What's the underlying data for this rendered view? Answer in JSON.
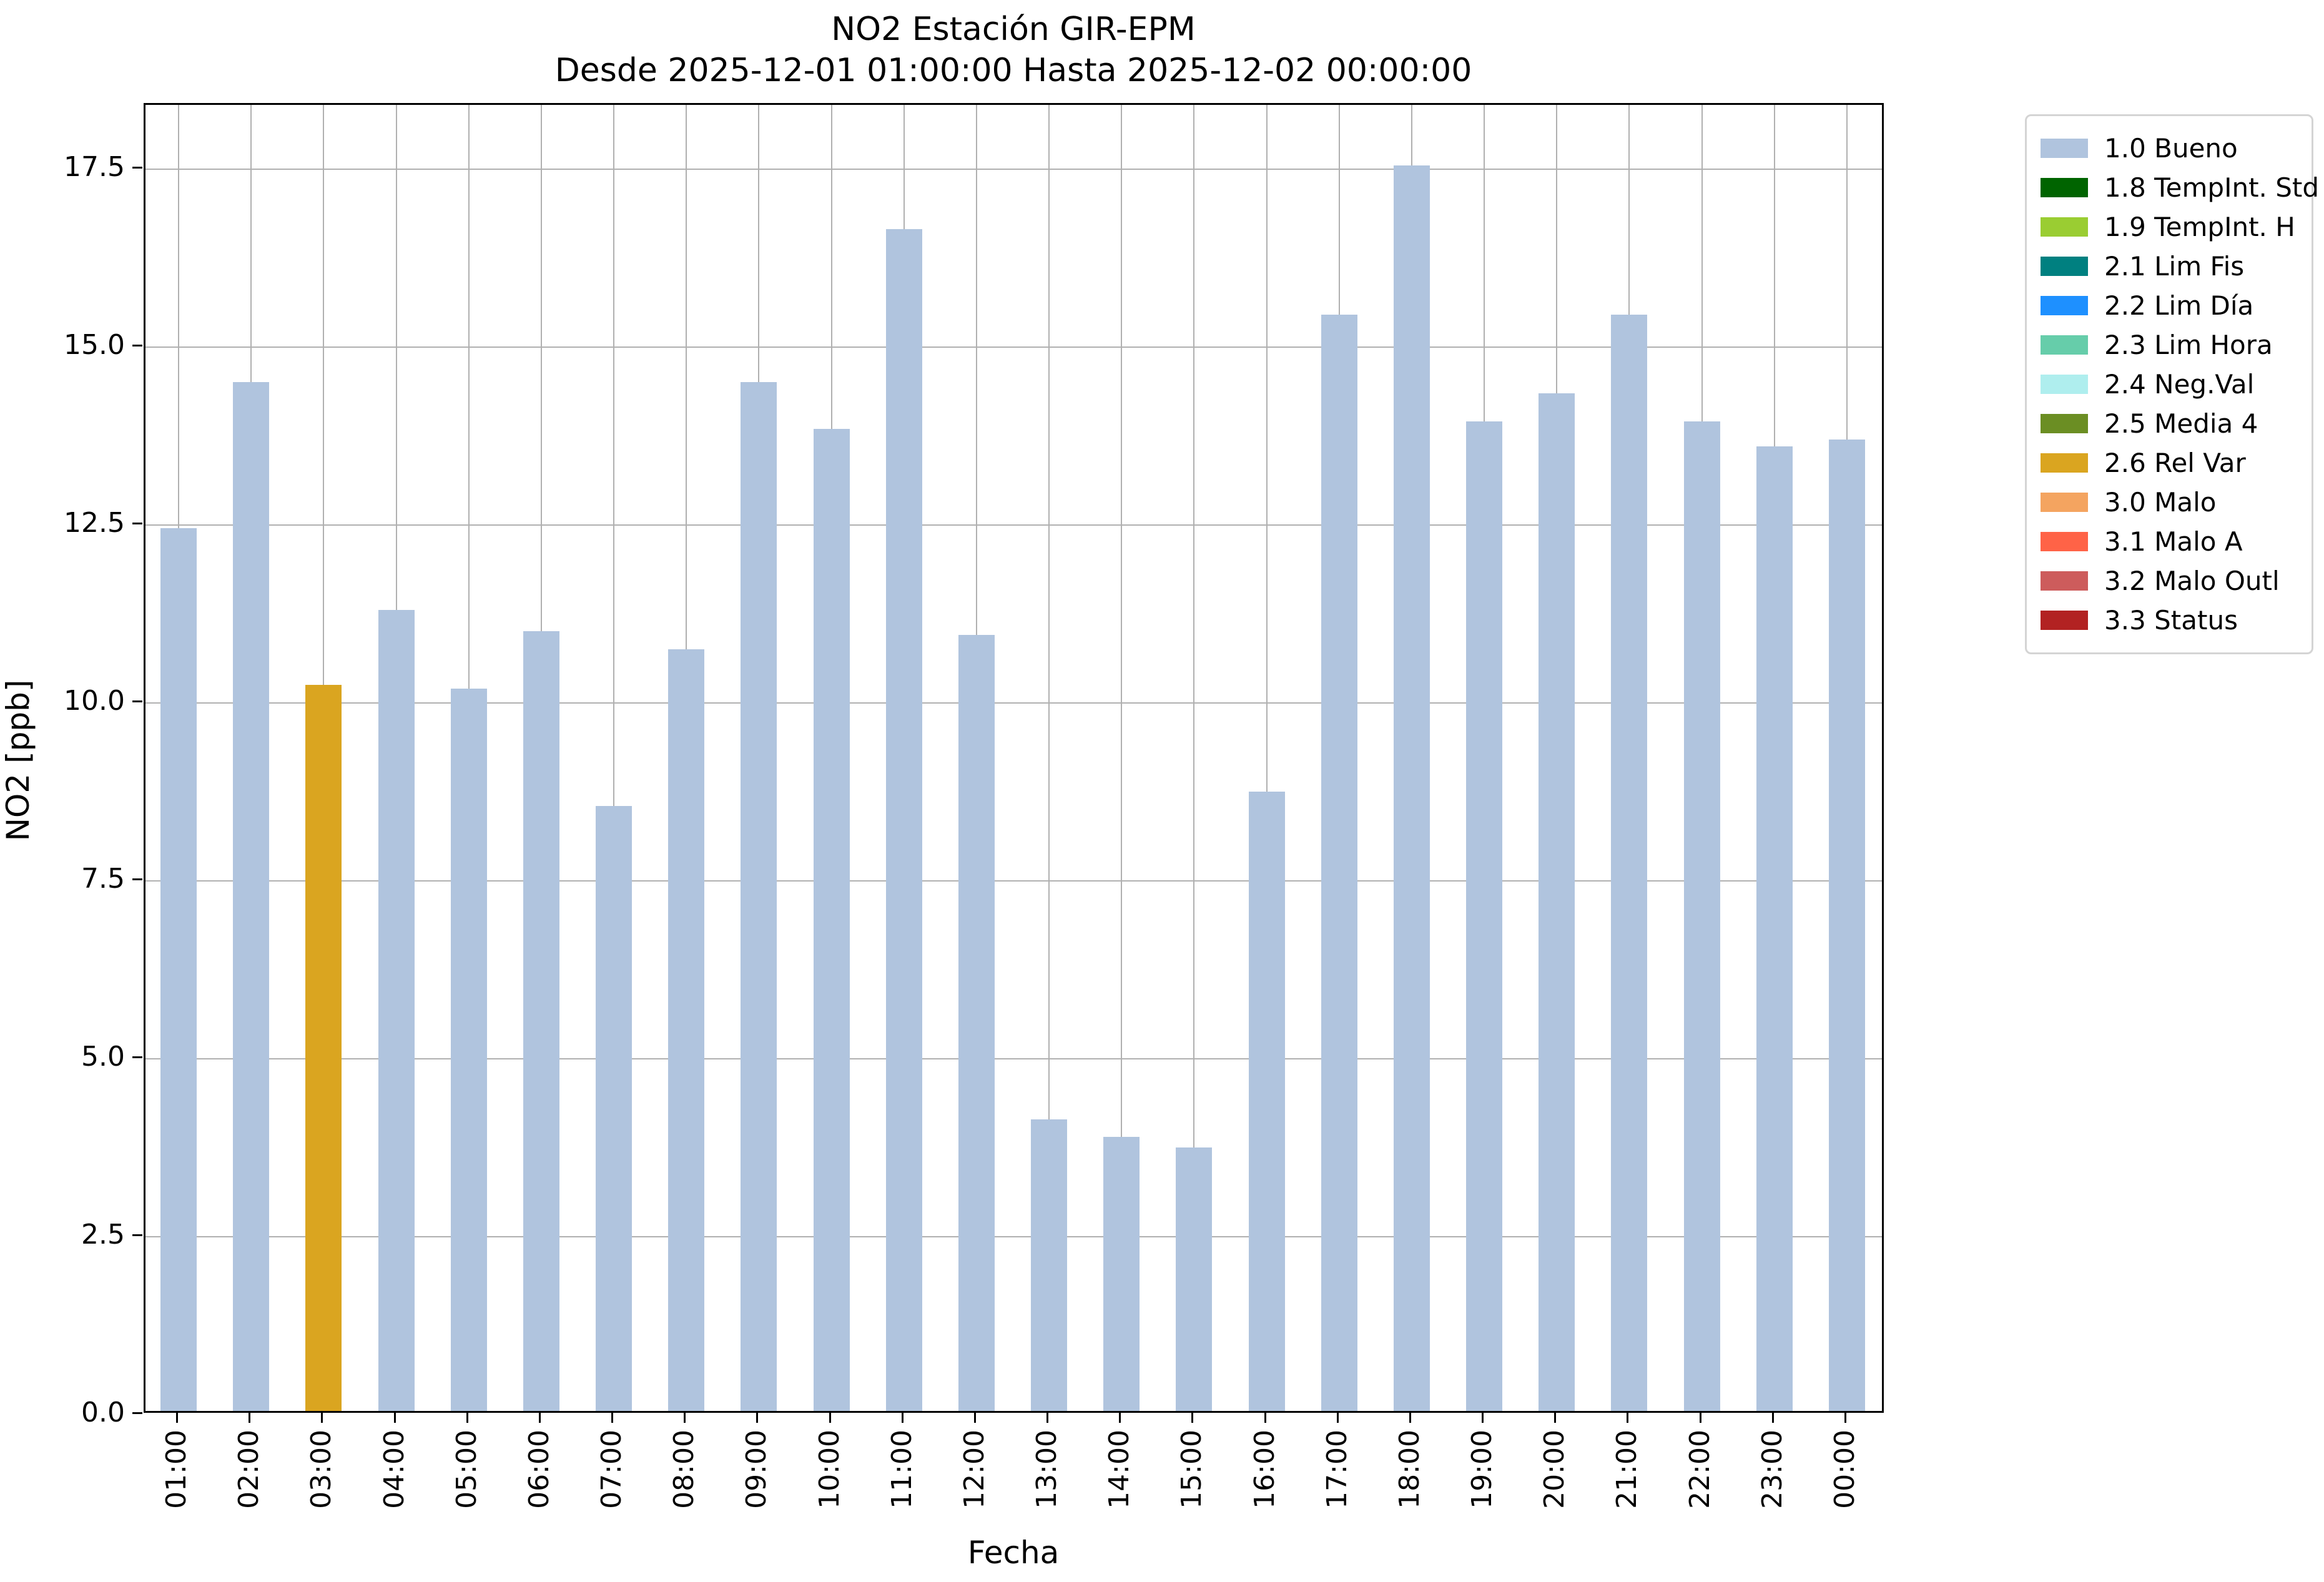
{
  "title": {
    "line1": "NO2 Estación GIR-EPM",
    "line2": "Desde 2025-12-01 01:00:00 Hasta 2025-12-02 00:00:00"
  },
  "axes": {
    "x_label": "Fecha",
    "y_label": "NO2 [ppb]",
    "y_tick_labels": [
      "0.0",
      "2.5",
      "5.0",
      "7.5",
      "10.0",
      "12.5",
      "15.0",
      "17.5"
    ]
  },
  "chart_data": {
    "type": "bar",
    "title": "NO2 Estación GIR-EPM",
    "subtitle": "Desde 2025-12-01 01:00:00 Hasta 2025-12-02 00:00:00",
    "xlabel": "Fecha",
    "ylabel": "NO2 [ppb]",
    "ylim": [
      0,
      18.4
    ],
    "y_ticks": [
      0.0,
      2.5,
      5.0,
      7.5,
      10.0,
      12.5,
      15.0,
      17.5
    ],
    "grid": true,
    "legend_position": "upper right, outside axes",
    "categories": [
      "01:00",
      "02:00",
      "03:00",
      "04:00",
      "05:00",
      "06:00",
      "07:00",
      "08:00",
      "09:00",
      "10:00",
      "11:00",
      "12:00",
      "13:00",
      "14:00",
      "15:00",
      "16:00",
      "17:00",
      "18:00",
      "19:00",
      "20:00",
      "21:00",
      "22:00",
      "23:00",
      "00:00"
    ],
    "values": [
      12.4,
      14.45,
      10.2,
      11.25,
      10.15,
      10.95,
      8.5,
      10.7,
      14.45,
      13.8,
      16.6,
      10.9,
      4.1,
      3.85,
      3.7,
      8.7,
      15.4,
      17.5,
      13.9,
      14.3,
      15.4,
      13.9,
      13.55,
      13.65
    ],
    "flags": [
      "1.0 Bueno",
      "1.0 Bueno",
      "2.6 Rel Var",
      "1.0 Bueno",
      "1.0 Bueno",
      "1.0 Bueno",
      "1.0 Bueno",
      "1.0 Bueno",
      "1.0 Bueno",
      "1.0 Bueno",
      "1.0 Bueno",
      "1.0 Bueno",
      "1.0 Bueno",
      "1.0 Bueno",
      "1.0 Bueno",
      "1.0 Bueno",
      "1.0 Bueno",
      "1.0 Bueno",
      "1.0 Bueno",
      "1.0 Bueno",
      "1.0 Bueno",
      "1.0 Bueno",
      "1.0 Bueno",
      "1.0 Bueno"
    ],
    "bar_colors": [
      "#b0c4de",
      "#b0c4de",
      "#daa520",
      "#b0c4de",
      "#b0c4de",
      "#b0c4de",
      "#b0c4de",
      "#b0c4de",
      "#b0c4de",
      "#b0c4de",
      "#b0c4de",
      "#b0c4de",
      "#b0c4de",
      "#b0c4de",
      "#b0c4de",
      "#b0c4de",
      "#b0c4de",
      "#b0c4de",
      "#b0c4de",
      "#b0c4de",
      "#b0c4de",
      "#b0c4de",
      "#b0c4de",
      "#b0c4de"
    ]
  },
  "legend": {
    "entries": [
      {
        "label": "1.0 Bueno",
        "color": "#b0c4de"
      },
      {
        "label": "1.8 TempInt. Std",
        "color": "#006400"
      },
      {
        "label": "1.9 TempInt. H",
        "color": "#9acd32"
      },
      {
        "label": "2.1 Lim Fis",
        "color": "#008080"
      },
      {
        "label": "2.2 Lim Día",
        "color": "#1e90ff"
      },
      {
        "label": "2.3 Lim Hora",
        "color": "#66cdaa"
      },
      {
        "label": "2.4 Neg.Val",
        "color": "#afeeee"
      },
      {
        "label": "2.5 Media 4",
        "color": "#6b8e23"
      },
      {
        "label": "2.6 Rel Var",
        "color": "#daa520"
      },
      {
        "label": "3.0 Malo",
        "color": "#f4a460"
      },
      {
        "label": "3.1 Malo A",
        "color": "#ff6347"
      },
      {
        "label": "3.2 Malo Outl",
        "color": "#cd5c5c"
      },
      {
        "label": "3.3 Status",
        "color": "#b22222"
      }
    ]
  },
  "colors": {
    "grid": "#b0b0b0",
    "spine": "#000000",
    "background": "#ffffff",
    "default_bar": "#b0c4de",
    "flagged_bar": "#daa520"
  }
}
